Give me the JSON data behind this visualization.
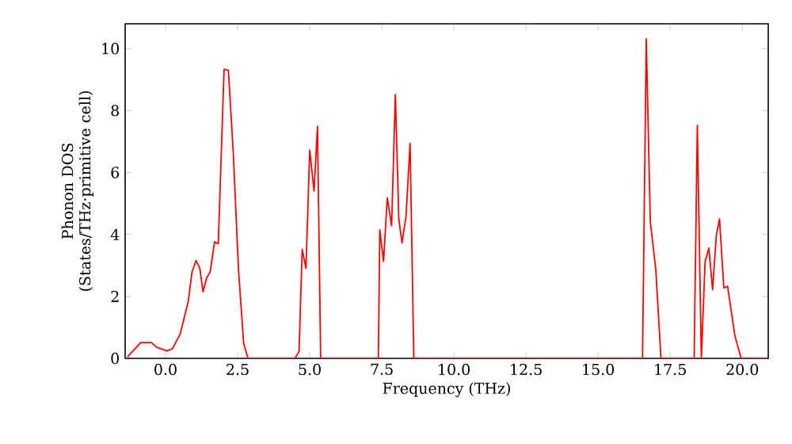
{
  "chart_data": {
    "type": "line",
    "xlabel": "Frequency (THz)",
    "ylabel": "Phonon DOS (States/THz·primitive cell)",
    "xlim": [
      -1.4,
      20.9
    ],
    "ylim": [
      0,
      10.8
    ],
    "xticks": [
      {
        "value": 0,
        "label": "0.0"
      },
      2.5,
      {
        "value": 5,
        "label": "5.0"
      },
      7.5,
      {
        "value": 10,
        "label": "10.0"
      },
      12.5,
      {
        "value": 15,
        "label": "15.0"
      },
      17.5,
      {
        "value": 20,
        "label": "20.0"
      }
    ],
    "yticks": [
      0,
      2,
      4,
      6,
      8,
      10
    ],
    "grid": false,
    "marker": "none",
    "line_style": "solid",
    "series": [
      {
        "color": "#ff0000",
        "x": [
          -1.32,
          -0.86,
          -0.49,
          -0.31,
          0.05,
          0.24,
          0.51,
          0.79,
          0.92,
          1.06,
          1.19,
          1.3,
          1.43,
          1.55,
          1.7,
          1.83,
          2.03,
          2.18,
          2.35,
          2.53,
          2.71,
          2.86,
          4.49,
          4.63,
          4.74,
          4.87,
          5.0,
          5.15,
          5.27,
          5.38,
          7.38,
          7.43,
          7.56,
          7.69,
          7.84,
          7.97,
          8.09,
          8.2,
          8.34,
          8.48,
          8.61,
          16.54,
          16.67,
          16.81,
          17.0,
          17.18,
          18.33,
          18.44,
          18.58,
          18.71,
          18.84,
          18.97,
          19.1,
          19.21,
          19.36,
          19.49,
          19.74,
          19.96,
          20.9
        ],
        "values": [
          0.05,
          0.51,
          0.51,
          0.36,
          0.24,
          0.31,
          0.79,
          1.85,
          2.79,
          3.16,
          2.9,
          2.15,
          2.61,
          2.79,
          3.76,
          3.7,
          9.33,
          9.3,
          6.63,
          2.87,
          0.48,
          0,
          0,
          0.22,
          3.52,
          2.9,
          6.72,
          5.4,
          7.49,
          0,
          0,
          4.15,
          3.13,
          5.18,
          4.28,
          8.51,
          4.5,
          3.73,
          4.58,
          6.94,
          0,
          0,
          10.31,
          4.41,
          2.87,
          0,
          0,
          7.52,
          0,
          3.13,
          3.56,
          2.22,
          3.98,
          4.5,
          2.27,
          2.33,
          0.74,
          0,
          0
        ]
      }
    ]
  }
}
